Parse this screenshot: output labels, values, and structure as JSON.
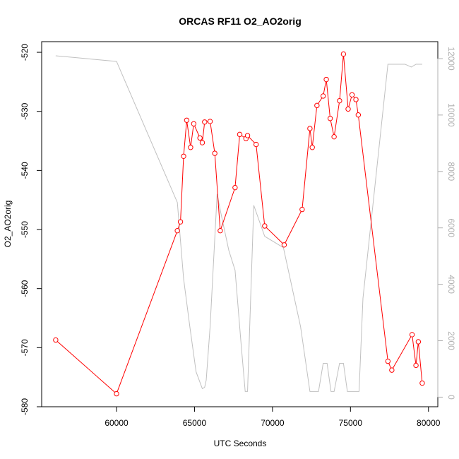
{
  "chart_data": {
    "type": "line",
    "title": "ORCAS RF11 O2_AO2orig",
    "xlabel": "UTC Seconds",
    "ylabel": "O2_AO2orig",
    "xlim": [
      55200,
      80600
    ],
    "ylim": [
      -580,
      -518.2
    ],
    "y2lim": [
      -340,
      12600
    ],
    "x_ticks": [
      60000,
      65000,
      70000,
      75000,
      80000
    ],
    "y_ticks": [
      -580,
      -570,
      -560,
      -550,
      -540,
      -530,
      -520
    ],
    "y2_ticks": [
      0,
      2000,
      4000,
      6000,
      8000,
      10000,
      12000
    ],
    "grid": false,
    "series": [
      {
        "role": "primary",
        "color": "#ff0000",
        "style": "line+points",
        "x": [
          56100,
          60000,
          63900,
          64100,
          64300,
          64500,
          64750,
          64950,
          65350,
          65500,
          65650,
          66000,
          66300,
          66650,
          67600,
          67900,
          68300,
          68400,
          68950,
          69500,
          70750,
          71900,
          72400,
          72550,
          72850,
          73250,
          73450,
          73700,
          73950,
          74300,
          74550,
          74850,
          75100,
          75350,
          75500,
          77400,
          77650,
          78950,
          79200,
          79350,
          79600
        ],
        "y": [
          -568.7,
          -577.8,
          -550.2,
          -548.7,
          -537.6,
          -531.5,
          -536.1,
          -532.1,
          -534.5,
          -535.3,
          -531.8,
          -531.7,
          -537.1,
          -550.2,
          -542.9,
          -533.9,
          -534.6,
          -534.1,
          -535.6,
          -549.4,
          -552.6,
          -546.6,
          -532.9,
          -536.1,
          -529.0,
          -527.4,
          -524.6,
          -531.2,
          -534.3,
          -528.2,
          -520.3,
          -529.6,
          -527.2,
          -528.0,
          -530.6,
          -572.3,
          -573.8,
          -567.8,
          -573.0,
          -569.0,
          -576.0
        ]
      },
      {
        "role": "secondary",
        "color": "#c0c0c0",
        "style": "line",
        "x": [
          56100,
          60000,
          63900,
          64300,
          64700,
          65100,
          65500,
          65650,
          65750,
          66000,
          66450,
          66700,
          67200,
          67600,
          68000,
          68250,
          68400,
          68800,
          69500,
          70700,
          71800,
          72400,
          72950,
          73250,
          73500,
          73750,
          73950,
          74300,
          74550,
          74800,
          75550,
          75800,
          77400,
          78500,
          78900,
          79200,
          79600
        ],
        "y": [
          12100,
          11900,
          6900,
          4200,
          2500,
          900,
          300,
          350,
          600,
          2500,
          7200,
          6500,
          5200,
          4500,
          1800,
          200,
          200,
          6800,
          5700,
          5300,
          2500,
          200,
          200,
          1200,
          1200,
          200,
          200,
          1200,
          1200,
          200,
          200,
          3500,
          11800,
          11800,
          11700,
          11800,
          11800
        ]
      }
    ]
  }
}
